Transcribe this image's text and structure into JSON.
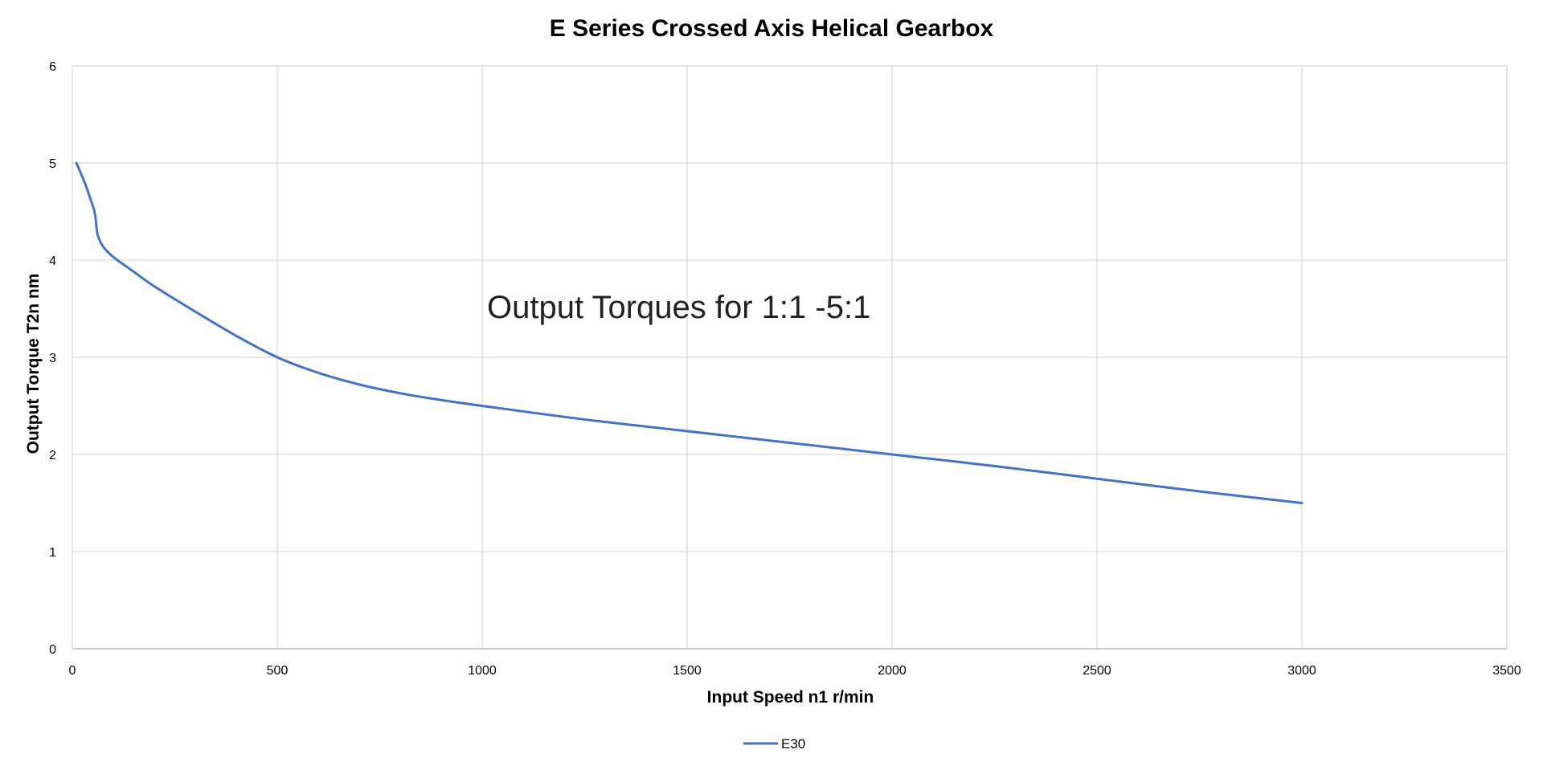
{
  "chart_data": {
    "type": "line",
    "title": "E Series Crossed Axis Helical Gearbox",
    "xlabel": "Input Speed n1 r/min",
    "ylabel": "Output Torque T2n nm",
    "xlim": [
      0,
      3500
    ],
    "ylim": [
      0,
      6
    ],
    "x_ticks": [
      0,
      500,
      1000,
      1500,
      2000,
      2500,
      3000,
      3500
    ],
    "y_ticks": [
      0,
      1,
      2,
      3,
      4,
      5,
      6
    ],
    "x_tick_labels": [
      "0",
      "500",
      "1000",
      "1500",
      "2000",
      "2500",
      "3000",
      "3500"
    ],
    "y_tick_labels": [
      "0",
      "1",
      "2",
      "3",
      "4",
      "5",
      "6"
    ],
    "grid": true,
    "legend_position": "bottom-center",
    "annotation": "Output Torques for 1:1 -5:1",
    "series": [
      {
        "name": "E30",
        "color": "#4472c4",
        "x": [
          10,
          30,
          45,
          55,
          60,
          65,
          75,
          90,
          110,
          150,
          200,
          300,
          400,
          500,
          600,
          700,
          800,
          900,
          1000,
          1250,
          1500,
          1750,
          2000,
          2250,
          2500,
          2750,
          3000
        ],
        "y": [
          5.0,
          4.8,
          4.62,
          4.48,
          4.3,
          4.22,
          4.14,
          4.07,
          4.0,
          3.88,
          3.73,
          3.47,
          3.22,
          3.0,
          2.84,
          2.72,
          2.63,
          2.56,
          2.5,
          2.36,
          2.24,
          2.12,
          2.0,
          1.88,
          1.75,
          1.62,
          1.5
        ]
      }
    ]
  }
}
